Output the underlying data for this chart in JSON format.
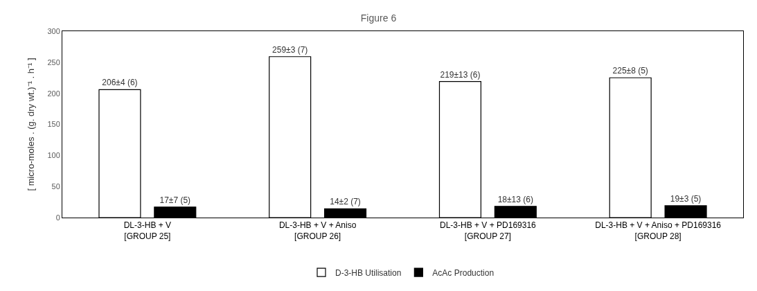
{
  "chart_data": {
    "type": "bar",
    "title": "Figure 6",
    "ylabel": "[ micro-moles . (g. dry wt.)⁻¹ . h⁻¹ ]",
    "categories": [
      "DL-3-HB + V\n[GROUP 25]",
      "DL-3-HB + V + Aniso\n[GROUP 26]",
      "DL-3-HB + V + PD169316\n[GROUP 27]",
      "DL-3-HB + V + Aniso + PD169316\n[GROUP 28]"
    ],
    "series": [
      {
        "name": "D-3-HB Utilisation",
        "color": "#ffffff",
        "values": [
          206,
          259,
          219,
          225
        ],
        "value_labels": [
          "206±4 (6)",
          "259±3 (7)",
          "219±13 (6)",
          "225±8 (5)"
        ]
      },
      {
        "name": "AcAc Production",
        "color": "#000000",
        "values": [
          17,
          14,
          18,
          19
        ],
        "value_labels": [
          "17±7 (5)",
          "14±2 (7)",
          "18±13 (6)",
          "19±3 (5)"
        ]
      }
    ],
    "ylim": [
      0,
      300
    ],
    "yticks": [
      0,
      50,
      100,
      150,
      200,
      250,
      300
    ],
    "legend": "bottom"
  }
}
